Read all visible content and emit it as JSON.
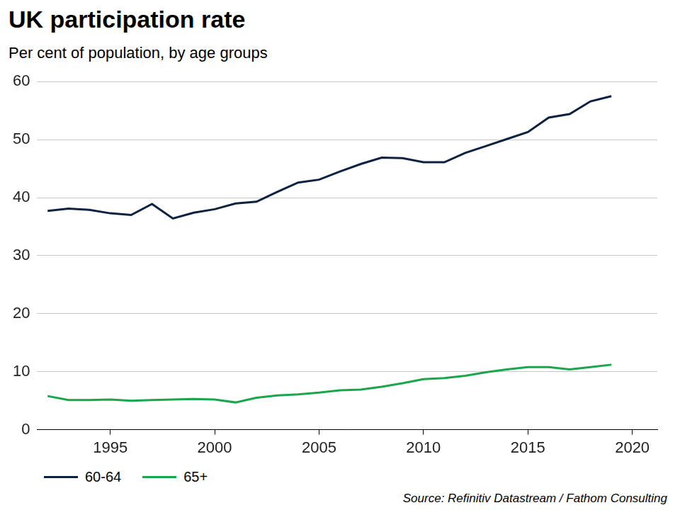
{
  "chart_data": {
    "type": "line",
    "title": "UK participation rate",
    "subtitle": "Per cent of population, by age groups",
    "source": "Source: Refinitiv Datastream / Fathom Consulting",
    "x": [
      1992,
      1993,
      1994,
      1995,
      1996,
      1997,
      1998,
      1999,
      2000,
      2001,
      2002,
      2003,
      2004,
      2005,
      2006,
      2007,
      2008,
      2009,
      2010,
      2011,
      2012,
      2013,
      2014,
      2015,
      2016,
      2017,
      2018,
      2019
    ],
    "series": [
      {
        "name": "60-64",
        "color": "#0d2240",
        "values": [
          37.7,
          38.1,
          37.9,
          37.3,
          37.0,
          38.9,
          36.4,
          37.4,
          38.0,
          39.0,
          39.3,
          41.0,
          42.6,
          43.1,
          44.5,
          45.8,
          46.9,
          46.8,
          46.1,
          46.1,
          47.7,
          48.9,
          50.1,
          51.3,
          53.8,
          54.4,
          56.6,
          57.5
        ]
      },
      {
        "name": "65+",
        "color": "#1aa64a",
        "values": [
          5.8,
          5.1,
          5.1,
          5.2,
          5.0,
          5.1,
          5.2,
          5.3,
          5.2,
          4.7,
          5.5,
          5.9,
          6.1,
          6.4,
          6.8,
          6.9,
          7.4,
          8.0,
          8.7,
          8.9,
          9.3,
          9.9,
          10.4,
          10.8,
          10.8,
          10.4,
          10.8,
          11.2
        ]
      }
    ],
    "xlim": [
      1991.5,
      2021.2
    ],
    "xticks": [
      1995,
      2000,
      2005,
      2010,
      2015,
      2020
    ],
    "ylim": [
      0,
      60
    ],
    "yticks": [
      0,
      10,
      20,
      30,
      40,
      50,
      60
    ],
    "grid": true,
    "legend": "bottom-left"
  }
}
